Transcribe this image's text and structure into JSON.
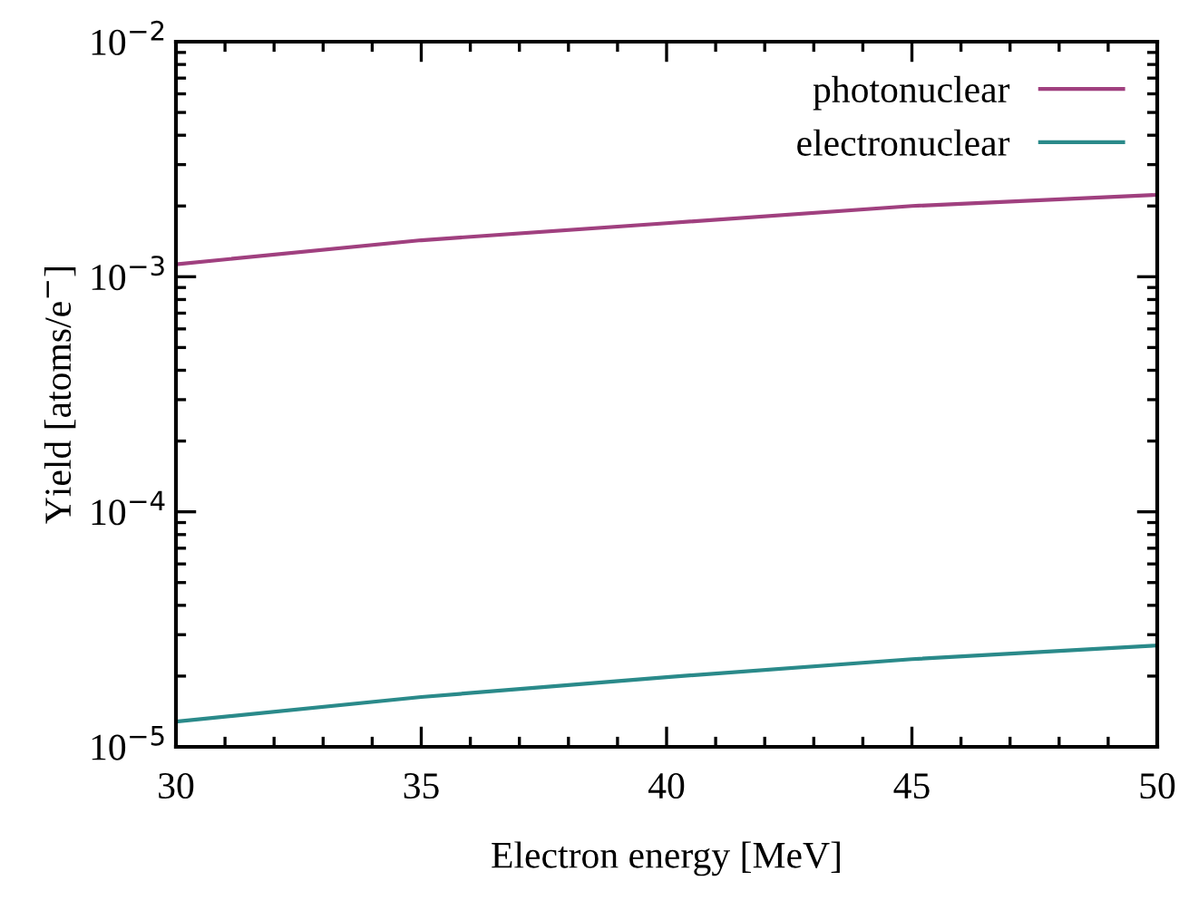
{
  "chart_data": {
    "type": "line",
    "xlabel": "Electron energy [MeV]",
    "ylabel": "Yield [atoms/e$^{−}$]",
    "x": [
      30,
      35,
      40,
      45,
      50
    ],
    "series": [
      {
        "name": "photonuclear",
        "color": "#a0407f",
        "values": [
          0.00113,
          0.00143,
          0.00169,
          0.002,
          0.00223
        ]
      },
      {
        "name": "electronuclear",
        "color": "#2a8a8a",
        "values": [
          1.28e-05,
          1.63e-05,
          1.98e-05,
          2.36e-05,
          2.7e-05
        ]
      }
    ],
    "log": "y",
    "xlim": [
      30,
      50
    ],
    "ylim": [
      1e-05,
      0.01
    ],
    "xticks": [
      30,
      35,
      40,
      45,
      50
    ],
    "yticks": [
      {
        "value": 1e-05,
        "label": "10$^{−5}$"
      },
      {
        "value": 0.0001,
        "label": "10$^{−4}$"
      },
      {
        "value": 0.001,
        "label": "10$^{−3}$"
      },
      {
        "value": 0.01,
        "label": "10$^{−2}$"
      }
    ],
    "grid": false,
    "legend": "top right",
    "marker": "none",
    "line_style": "solid"
  }
}
